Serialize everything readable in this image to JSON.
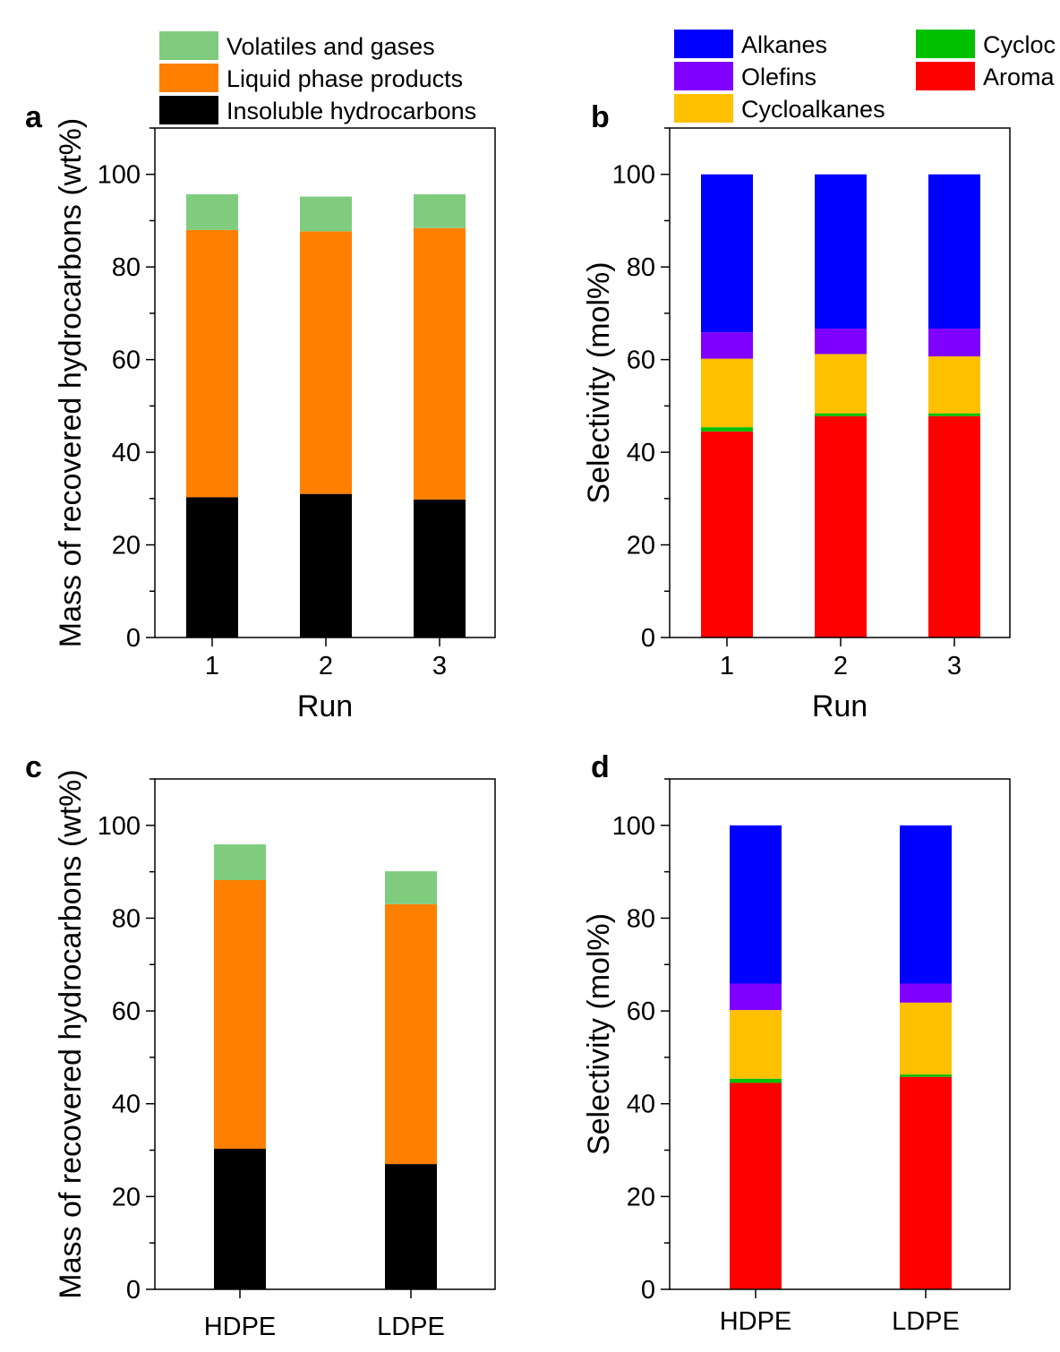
{
  "chart_data": [
    {
      "panel": "a",
      "type": "bar",
      "stacked": true,
      "categories": [
        "1",
        "2",
        "3"
      ],
      "xlabel": "Run",
      "ylabel": "Mass of recovered hydrocarbons (wt%)",
      "ylim": [
        0,
        110
      ],
      "yticks": [
        0,
        20,
        40,
        60,
        80,
        100
      ],
      "series": [
        {
          "name": "Insoluble hydrocarbons",
          "color": "#000000",
          "values": [
            30.3,
            31.0,
            29.8
          ]
        },
        {
          "name": "Liquid phase products",
          "color": "#ff7f00",
          "values": [
            57.7,
            56.7,
            58.6
          ]
        },
        {
          "name": "Volatiles and gases",
          "color": "#7fcc7f",
          "values": [
            7.7,
            7.5,
            7.3
          ]
        }
      ],
      "legend": "top, above plot"
    },
    {
      "panel": "b",
      "type": "bar",
      "stacked": true,
      "categories": [
        "1",
        "2",
        "3"
      ],
      "xlabel": "Run",
      "ylabel": "Selectivity (mol%)",
      "ylim": [
        0,
        110
      ],
      "yticks": [
        0,
        20,
        40,
        60,
        80,
        100
      ],
      "series": [
        {
          "name": "Aromatics",
          "legend_text": "Aroma",
          "color": "#ff0000",
          "values": [
            44.5,
            47.8,
            47.8
          ]
        },
        {
          "name": "Cyclo",
          "legend_text": "Cycloc",
          "color": "#00c000",
          "values": [
            0.9,
            0.6,
            0.6
          ]
        },
        {
          "name": "Cycloalkanes",
          "color": "#ffc000",
          "values": [
            14.8,
            12.8,
            12.3
          ]
        },
        {
          "name": "Olefins",
          "color": "#8000ff",
          "values": [
            5.7,
            5.5,
            6.0
          ]
        },
        {
          "name": "Alkanes",
          "color": "#0000ff",
          "values": [
            34.1,
            33.3,
            33.3
          ]
        }
      ],
      "legend": "top, above plot, two columns (right column cut off)"
    },
    {
      "panel": "c",
      "type": "bar",
      "stacked": true,
      "categories": [
        "HDPE",
        "LDPE"
      ],
      "xlabel": "",
      "ylabel": "Mass of recovered hydrocarbons (wt%)",
      "ylim": [
        0,
        110
      ],
      "yticks": [
        0,
        20,
        40,
        60,
        80,
        100
      ],
      "series": [
        {
          "name": "Insoluble hydrocarbons",
          "color": "#000000",
          "values": [
            30.3,
            27.0
          ]
        },
        {
          "name": "Liquid phase products",
          "color": "#ff7f00",
          "values": [
            57.9,
            56.0
          ]
        },
        {
          "name": "Volatiles and gases",
          "color": "#7fcc7f",
          "values": [
            7.7,
            7.1
          ]
        }
      ]
    },
    {
      "panel": "d",
      "type": "bar",
      "stacked": true,
      "categories": [
        "HDPE",
        "LDPE"
      ],
      "xlabel": "",
      "ylabel": "Selectivity (mol%)",
      "ylim": [
        0,
        110
      ],
      "yticks": [
        0,
        20,
        40,
        60,
        80,
        100
      ],
      "series": [
        {
          "name": "Aromatics",
          "color": "#ff0000",
          "values": [
            44.5,
            45.8
          ]
        },
        {
          "name": "Cyclo",
          "color": "#00c000",
          "values": [
            0.9,
            0.5
          ]
        },
        {
          "name": "Cycloalkanes",
          "color": "#ffc000",
          "values": [
            14.8,
            15.5
          ]
        },
        {
          "name": "Olefins",
          "color": "#8000ff",
          "values": [
            5.7,
            4.1
          ]
        },
        {
          "name": "Alkanes",
          "color": "#0000ff",
          "values": [
            34.1,
            34.1
          ]
        }
      ]
    }
  ]
}
